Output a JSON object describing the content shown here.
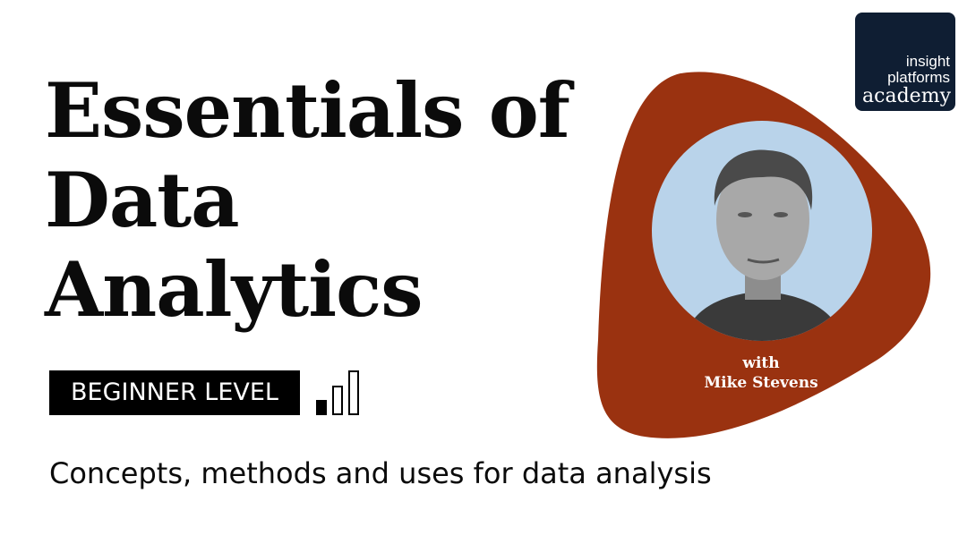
{
  "title_lines": [
    "Essentials of",
    "Data",
    "Analytics"
  ],
  "level_badge": "BEGINNER LEVEL",
  "level": {
    "filled_bars": 1,
    "total_bars": 3
  },
  "subtitle": "Concepts, methods and uses for data analysis",
  "presenter": {
    "prefix": "with",
    "name": "Mike Stevens"
  },
  "logo": {
    "line1": "insight",
    "line2": "platforms",
    "line3": "academy"
  },
  "colors": {
    "blob": "#9a3210",
    "logo_bg": "#0f1e33",
    "photo_bg": "#b9d3ea",
    "text": "#0b0b0b"
  }
}
